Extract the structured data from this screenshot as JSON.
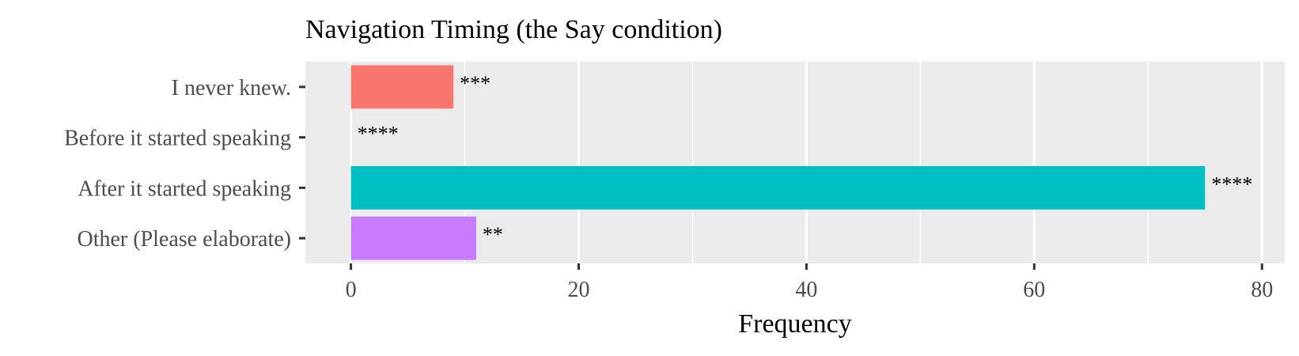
{
  "chart_data": {
    "type": "bar",
    "orientation": "horizontal",
    "title": "Navigation Timing (the Say condition)",
    "xlabel": "Frequency",
    "ylabel": "",
    "xlim": [
      -4,
      82
    ],
    "xticks": [
      0,
      20,
      40,
      60,
      80
    ],
    "grid": true,
    "legend": "none",
    "categories": [
      "I never knew.",
      "Before it started speaking",
      "After it started speaking",
      "Other (Please elaborate)"
    ],
    "values": [
      9,
      0,
      75,
      11
    ],
    "annotations": [
      "***",
      "****",
      "****",
      "**"
    ],
    "colors": [
      "#F8766D",
      "#7CAE00",
      "#00BFC4",
      "#C77CFF"
    ]
  }
}
